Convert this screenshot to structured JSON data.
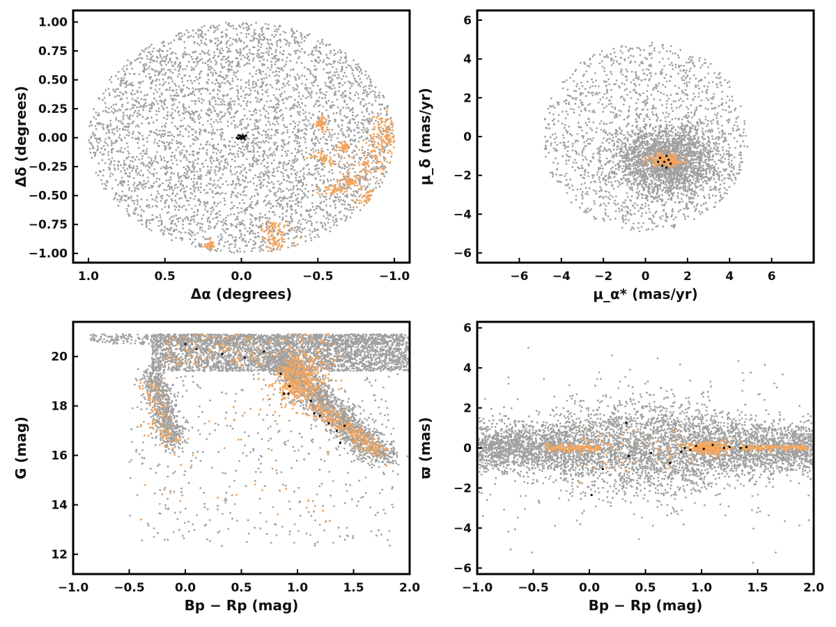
{
  "colors": {
    "field": "#a0a0a0",
    "members": "#f5a55b",
    "core": "#000000",
    "frame": "#000000"
  },
  "chart_data": [
    {
      "id": "position",
      "type": "scatter",
      "xlabel": "Δα (degrees)",
      "ylabel": "Δδ (degrees)",
      "xlim": [
        1.1,
        -1.1
      ],
      "ylim": [
        -1.08,
        1.1
      ],
      "x_inverted": true,
      "xticks": [
        1.0,
        0.5,
        0.0,
        -0.5,
        -1.0
      ],
      "xtick_labels": [
        "1.0",
        "0.5",
        "0.0",
        "−0.5",
        "−1.0"
      ],
      "yticks": [
        1.0,
        0.75,
        0.5,
        0.25,
        0.0,
        -0.25,
        -0.5,
        -0.75,
        -1.0
      ],
      "ytick_labels": [
        "1.00",
        "0.75",
        "0.50",
        "0.25",
        "0.00",
        "−0.25",
        "−0.50",
        "−0.75",
        "−1.00"
      ],
      "grid": false,
      "field_distribution": {
        "shape": "disk",
        "center": [
          0,
          0
        ],
        "radius": 1.0
      },
      "member_groups": [
        {
          "center": [
            -0.52,
            0.12
          ],
          "spread": [
            0.02,
            0.03
          ]
        },
        {
          "center": [
            -0.92,
            0.12
          ],
          "spread": [
            0.05,
            0.05
          ]
        },
        {
          "center": [
            -0.96,
            0.0
          ],
          "spread": [
            0.03,
            0.04
          ]
        },
        {
          "center": [
            -0.88,
            -0.12
          ],
          "spread": [
            0.06,
            0.06
          ]
        },
        {
          "center": [
            -0.85,
            -0.25
          ],
          "spread": [
            0.06,
            0.05
          ]
        },
        {
          "center": [
            -0.72,
            -0.38
          ],
          "spread": [
            0.04,
            0.03
          ]
        },
        {
          "center": [
            -0.82,
            -0.52
          ],
          "spread": [
            0.06,
            0.05
          ]
        },
        {
          "center": [
            -0.6,
            -0.45
          ],
          "spread": [
            0.04,
            0.02
          ]
        },
        {
          "center": [
            -0.55,
            -0.18
          ],
          "spread": [
            0.04,
            0.03
          ]
        },
        {
          "center": [
            -0.67,
            -0.08
          ],
          "spread": [
            0.02,
            0.02
          ]
        },
        {
          "center": [
            -0.22,
            -0.78
          ],
          "spread": [
            0.04,
            0.03
          ]
        },
        {
          "center": [
            -0.22,
            -0.9
          ],
          "spread": [
            0.06,
            0.04
          ]
        },
        {
          "center": [
            0.2,
            -0.93
          ],
          "spread": [
            0.02,
            0.02
          ]
        }
      ],
      "core_points": [
        [
          0.0,
          0.01
        ],
        [
          0.01,
          0.0
        ],
        [
          -0.01,
          0.0
        ],
        [
          0.02,
          0.02
        ],
        [
          -0.02,
          0.01
        ],
        [
          0.0,
          -0.01
        ],
        [
          0.02,
          -0.01
        ],
        [
          -0.01,
          0.02
        ],
        [
          0.01,
          0.02
        ],
        [
          -0.02,
          -0.01
        ],
        [
          0.03,
          0.0
        ],
        [
          -0.03,
          0.02
        ]
      ]
    },
    {
      "id": "proper_motion",
      "type": "scatter",
      "xlabel": "μ_α* (mas/yr)",
      "ylabel": "μ_δ (mas/yr)",
      "xlim": [
        -8,
        8
      ],
      "ylim": [
        -6.5,
        6.5
      ],
      "xticks": [
        -6,
        -4,
        -2,
        0,
        2,
        4,
        6
      ],
      "xtick_labels": [
        "−6",
        "−4",
        "−2",
        "0",
        "2",
        "4",
        "6"
      ],
      "yticks": [
        6,
        4,
        2,
        0,
        -2,
        -4,
        -6
      ],
      "ytick_labels": [
        "6",
        "4",
        "2",
        "0",
        "−2",
        "−4",
        "−6"
      ],
      "grid": false,
      "field_distribution": {
        "shape": "disk",
        "center": [
          0,
          0
        ],
        "radius": 4.9
      },
      "member_groups": [
        {
          "center": [
            0.9,
            -1.2
          ],
          "spread": [
            0.35,
            0.18
          ]
        }
      ],
      "core_points": [
        [
          0.7,
          -1.1
        ],
        [
          0.9,
          -1.3
        ],
        [
          1.1,
          -1.2
        ],
        [
          0.8,
          -1.5
        ],
        [
          1.0,
          -1.0
        ],
        [
          1.2,
          -1.4
        ],
        [
          0.6,
          -1.3
        ],
        [
          1.0,
          -1.6
        ]
      ]
    },
    {
      "id": "cmd",
      "type": "scatter",
      "xlabel": "Bp − Rp (mag)",
      "ylabel": "G (mag)",
      "xlim": [
        -1.0,
        2.0
      ],
      "ylim": [
        11.2,
        21.4
      ],
      "xticks": [
        -1.0,
        -0.5,
        0.0,
        0.5,
        1.0,
        1.5,
        2.0
      ],
      "xtick_labels": [
        "−1.0",
        "−0.5",
        "0.0",
        "0.5",
        "1.0",
        "1.5",
        "2.0"
      ],
      "yticks": [
        20,
        18,
        16,
        14,
        12
      ],
      "ytick_labels": [
        "20",
        "18",
        "16",
        "14",
        "12"
      ],
      "grid": false,
      "core_points": [
        [
          0.0,
          20.5
        ],
        [
          0.1,
          20.3
        ],
        [
          0.33,
          20.1
        ],
        [
          0.53,
          19.95
        ],
        [
          0.7,
          20.2
        ],
        [
          0.85,
          19.3
        ],
        [
          0.88,
          18.5
        ],
        [
          0.93,
          18.8
        ],
        [
          0.92,
          18.5
        ],
        [
          1.12,
          18.2
        ],
        [
          1.15,
          17.7
        ],
        [
          1.2,
          17.6
        ],
        [
          1.35,
          17.0
        ],
        [
          1.42,
          17.2
        ],
        [
          1.38,
          16.5
        ],
        [
          1.28,
          17.3
        ]
      ]
    },
    {
      "id": "parallax",
      "type": "scatter",
      "xlabel": "Bp − Rp (mag)",
      "ylabel": "ϖ (mas)",
      "xlim": [
        -1.0,
        2.0
      ],
      "ylim": [
        -6.3,
        6.3
      ],
      "xticks": [
        -1.0,
        -0.5,
        0.0,
        0.5,
        1.0,
        1.5,
        2.0
      ],
      "xtick_labels": [
        "−1.0",
        "−0.5",
        "0.0",
        "0.5",
        "1.0",
        "1.5",
        "2.0"
      ],
      "yticks": [
        6,
        4,
        2,
        0,
        -2,
        -4,
        -6
      ],
      "ytick_labels": [
        "6",
        "4",
        "2",
        "0",
        "−2",
        "−4",
        "−6"
      ],
      "grid": false,
      "core_points": [
        [
          0.33,
          1.25
        ],
        [
          0.35,
          -0.4
        ],
        [
          0.55,
          -0.25
        ],
        [
          0.12,
          -1.05
        ],
        [
          0.02,
          -2.35
        ],
        [
          0.72,
          -0.75
        ],
        [
          0.82,
          -0.2
        ],
        [
          0.85,
          0.0
        ],
        [
          0.9,
          -0.1
        ],
        [
          0.95,
          0.1
        ],
        [
          1.1,
          0.15
        ],
        [
          1.2,
          0.0
        ],
        [
          1.25,
          0.05
        ],
        [
          1.35,
          0.0
        ],
        [
          1.4,
          0.05
        ],
        [
          1.02,
          -0.05
        ]
      ]
    }
  ]
}
